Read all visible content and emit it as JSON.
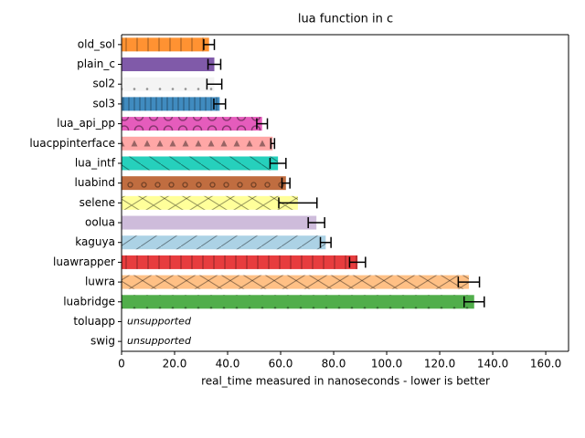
{
  "chart_data": {
    "type": "barh",
    "title": "lua function in c",
    "xlabel": "real_time measured in nanoseconds - lower is better",
    "categories": [
      "old_sol",
      "plain_c",
      "sol2",
      "sol3",
      "lua_api_pp",
      "luacppinterface",
      "lua_intf",
      "luabind",
      "selene",
      "oolua",
      "kaguya",
      "luawrapper",
      "luwra",
      "luabridge",
      "toluapp",
      "swig"
    ],
    "values": [
      33,
      35,
      35,
      37,
      53,
      57,
      59,
      62,
      66.5,
      73.5,
      77,
      89,
      131,
      133,
      null,
      null
    ],
    "errors": [
      2,
      2.4,
      2.8,
      2.2,
      2,
      0.7,
      3,
      1.5,
      7.2,
      3.1,
      2,
      3,
      4,
      3.8,
      null,
      null
    ],
    "colors": [
      "#ff7f0e",
      "#6a3d9a",
      "#f2f2f2",
      "#1f77b4",
      "#e040b0",
      "#ff9896",
      "#00c8b0",
      "#b5541f",
      "#ffff88",
      "#c5b0d5",
      "#9ecae1",
      "#e31a1c",
      "#ffb570",
      "#33a02c",
      null,
      null
    ],
    "hatches": [
      "|",
      "",
      ".",
      "||",
      "O",
      "*",
      "\\",
      "o",
      "x",
      "",
      "/",
      "|",
      "x",
      ".",
      null,
      null
    ],
    "annotations": [
      {
        "text": "unsupported",
        "category": "toluapp",
        "color": "#c040c0"
      },
      {
        "text": "unsupported",
        "category": "swig",
        "color": "#a8d890"
      }
    ],
    "xlim": [
      0,
      168.6
    ],
    "xticks": [
      0,
      {
        "value": 20,
        "label": "20.0"
      },
      {
        "value": 40,
        "label": "40.0"
      },
      {
        "value": 60,
        "label": "60.0"
      },
      {
        "value": 80,
        "label": "80.0"
      },
      {
        "value": 100,
        "label": "100.0"
      },
      {
        "value": 120,
        "label": "120.0"
      },
      {
        "value": 140,
        "label": "140.0"
      },
      {
        "value": 160,
        "label": "160.0"
      }
    ]
  }
}
